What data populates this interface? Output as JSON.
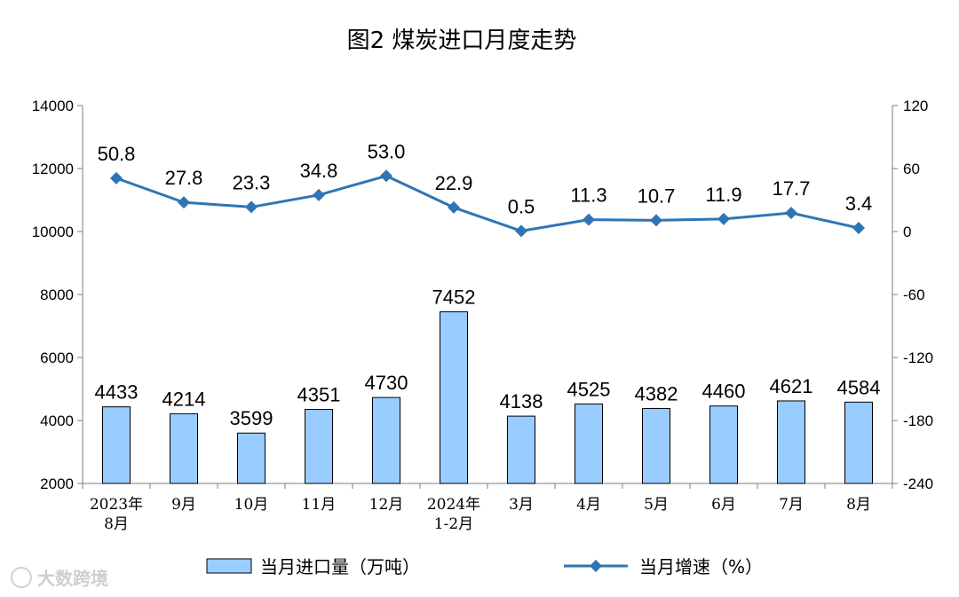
{
  "chart_data": {
    "type": "bar",
    "title": "图2  煤炭进口月度走势",
    "categories": [
      "2023年\n8月",
      "9月",
      "10月",
      "11月",
      "12月",
      "2024年\n1-2月",
      "3月",
      "4月",
      "5月",
      "6月",
      "7月",
      "8月"
    ],
    "series": [
      {
        "name": "当月进口量（万吨）",
        "type": "bar",
        "axis": "left",
        "color": "#99ccff",
        "values": [
          4433,
          4214,
          3599,
          4351,
          4730,
          7452,
          4138,
          4525,
          4382,
          4460,
          4621,
          4584
        ],
        "labels": [
          "4433",
          "4214",
          "3599",
          "4351",
          "4730",
          "7452",
          "4138",
          "4525",
          "4382",
          "4460",
          "4621",
          "4584"
        ]
      },
      {
        "name": "当月增速（%）",
        "type": "line",
        "axis": "right",
        "color": "#2e75b6",
        "values": [
          50.8,
          27.8,
          23.3,
          34.8,
          53.0,
          22.9,
          0.5,
          11.3,
          10.7,
          11.9,
          17.7,
          3.4
        ],
        "labels": [
          "50.8",
          "27.8",
          "23.3",
          "34.8",
          "53.0",
          "22.9",
          "0.5",
          "11.3",
          "10.7",
          "11.9",
          "17.7",
          "3.4"
        ]
      }
    ],
    "y_left": {
      "min": 2000,
      "max": 14000,
      "ticks": [
        "2000",
        "4000",
        "6000",
        "8000",
        "10000",
        "12000",
        "14000"
      ]
    },
    "y_right": {
      "min": -240,
      "max": 120,
      "ticks": [
        "-240",
        "-180",
        "-120",
        "-60",
        "0",
        "60",
        "120"
      ]
    },
    "grid": false,
    "legend": "bottom"
  },
  "watermark": "大数跨境"
}
